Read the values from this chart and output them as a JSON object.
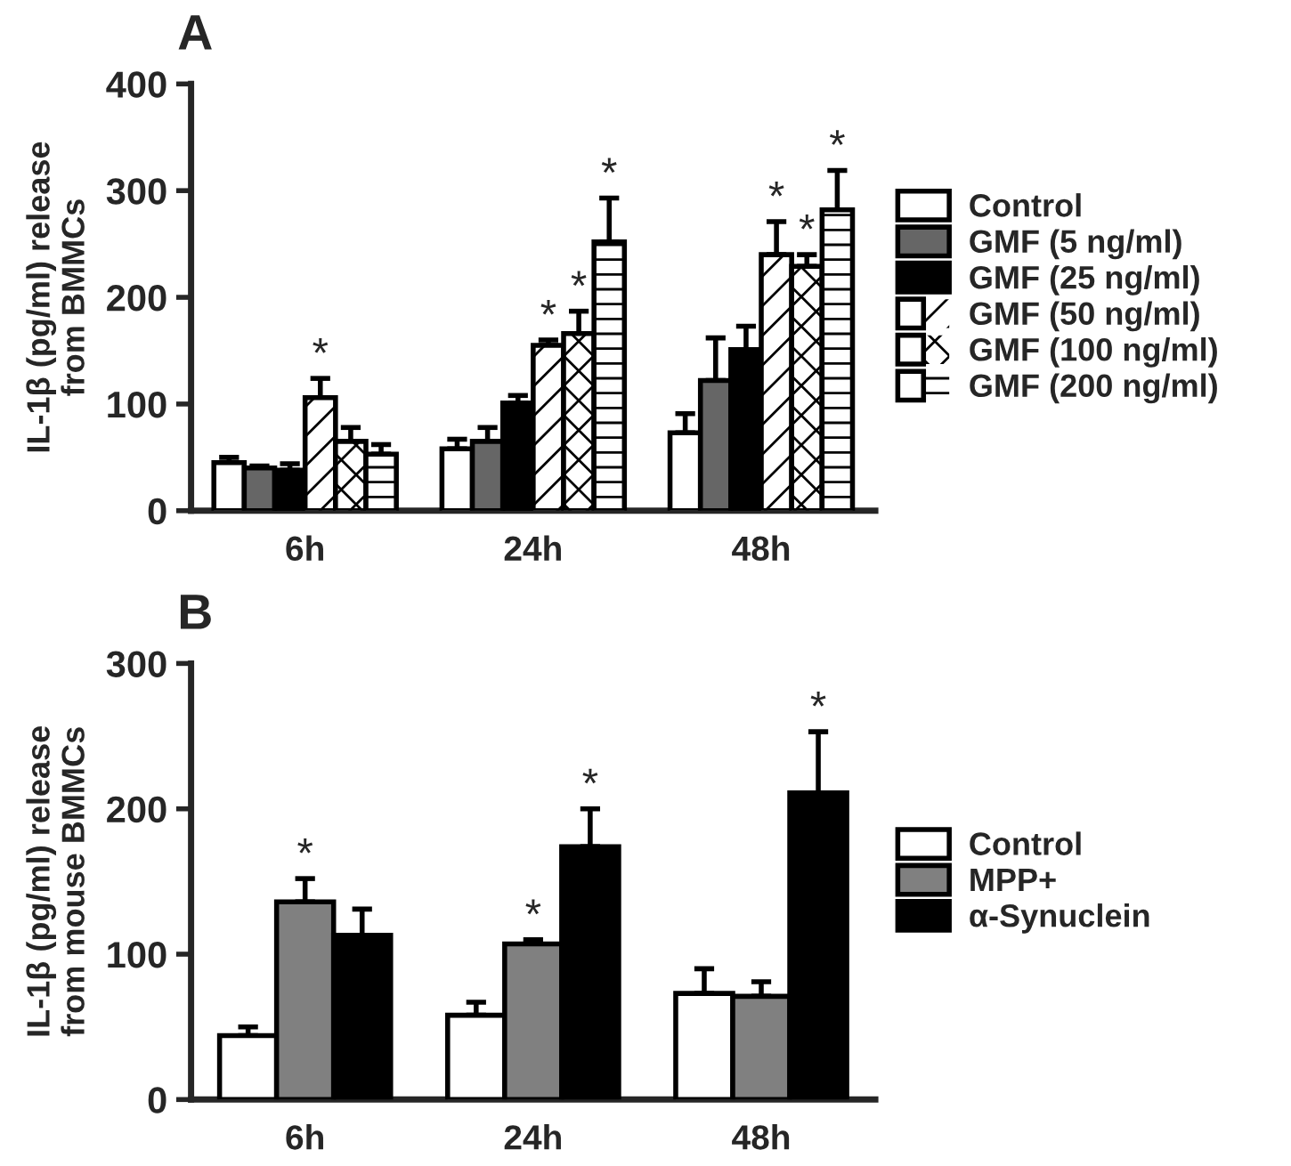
{
  "chart_data": [
    {
      "type": "bar",
      "title": "A",
      "ylabel": "IL-1β (pg/ml) release\nfrom BMMCs",
      "categories": [
        "6h",
        "24h",
        "48h"
      ],
      "series": [
        {
          "name": "Control",
          "color": "#ffffff",
          "values": [
            45,
            58,
            73
          ],
          "errors": [
            [
              45,
              50
            ],
            [
              58,
              67
            ],
            [
              73,
              91
            ]
          ]
        },
        {
          "name": "GMF (5 ng/ml)",
          "color": "#666666",
          "values": [
            40,
            65,
            122
          ],
          "errors": [
            [
              40,
              42
            ],
            [
              65,
              78
            ],
            [
              122,
              162
            ]
          ]
        },
        {
          "name": "GMF (25 ng/ml)",
          "color": "#000000",
          "values": [
            38,
            101,
            151
          ],
          "errors": [
            [
              38,
              44
            ],
            [
              101,
              108
            ],
            [
              151,
              173
            ]
          ]
        },
        {
          "name": "GMF (50 ng/ml)",
          "color": "#ffffff",
          "values": [
            106,
            155,
            240
          ],
          "errors": [
            [
              106,
              124
            ],
            [
              155,
              160
            ],
            [
              240,
              271
            ]
          ],
          "value_labels": [
            "*",
            "*",
            "*"
          ]
        },
        {
          "name": "GMF (100 ng/ml)",
          "color": "#ffffff",
          "values": [
            65,
            166,
            229
          ],
          "errors": [
            [
              65,
              78
            ],
            [
              166,
              187
            ],
            [
              229,
              240
            ]
          ],
          "value_labels": [
            null,
            "*",
            "*"
          ]
        },
        {
          "name": "GMF (200 ng/ml)",
          "color": "#ffffff",
          "values": [
            53,
            252,
            282
          ],
          "errors": [
            [
              53,
              62
            ],
            [
              252,
              293
            ],
            [
              282,
              319
            ]
          ],
          "value_labels": [
            null,
            "*",
            "*"
          ]
        }
      ],
      "ylim": [
        0,
        400
      ],
      "yticks": [
        0,
        100,
        200,
        300,
        400
      ],
      "legend": "right",
      "grid": false
    },
    {
      "type": "bar",
      "title": "B",
      "ylabel": "IL-1β (pg/ml) release\nfrom mouse BMMCs",
      "categories": [
        "6h",
        "24h",
        "48h"
      ],
      "series": [
        {
          "name": "Control",
          "color": "#ffffff",
          "values": [
            44,
            58,
            73
          ],
          "errors": [
            [
              44,
              50
            ],
            [
              58,
              67
            ],
            [
              73,
              90
            ]
          ]
        },
        {
          "name": "MPP+",
          "color": "#808080",
          "values": [
            136,
            107,
            71
          ],
          "errors": [
            [
              136,
              152
            ],
            [
              107,
              110
            ],
            [
              71,
              81
            ]
          ],
          "value_labels": [
            "*",
            "*",
            null
          ]
        },
        {
          "name": "α-Synuclein",
          "color": "#000000",
          "values": [
            113,
            174,
            211
          ],
          "errors": [
            [
              113,
              131
            ],
            [
              174,
              200
            ],
            [
              211,
              253
            ]
          ],
          "value_labels": [
            null,
            "*",
            "*"
          ]
        }
      ],
      "ylim": [
        0,
        300
      ],
      "yticks": [
        0,
        100,
        200,
        300
      ],
      "legend": "right",
      "grid": false
    }
  ]
}
